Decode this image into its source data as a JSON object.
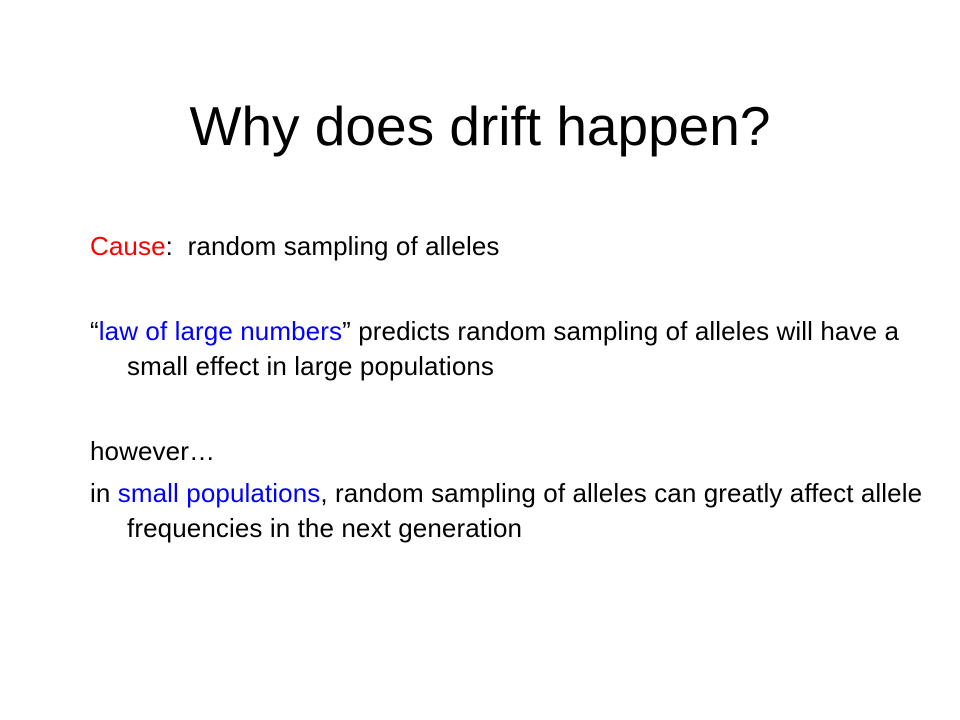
{
  "slide": {
    "title": "Why does drift happen?",
    "colors": {
      "accent_red": "#ff0000",
      "accent_blue": "#0000ff",
      "text": "#000000",
      "background": "#ffffff"
    },
    "cause": {
      "term": "Cause",
      "rest": ":  random sampling of alleles"
    },
    "law": {
      "open_quote": "“",
      "term": "law of large numbers",
      "rest": "” predicts random sampling of alleles will have a small effect in large populations"
    },
    "however": "however…",
    "small": {
      "lead": "in ",
      "term": "small populations",
      "rest": ", random sampling of alleles can greatly affect allele frequencies in the next generation"
    }
  }
}
